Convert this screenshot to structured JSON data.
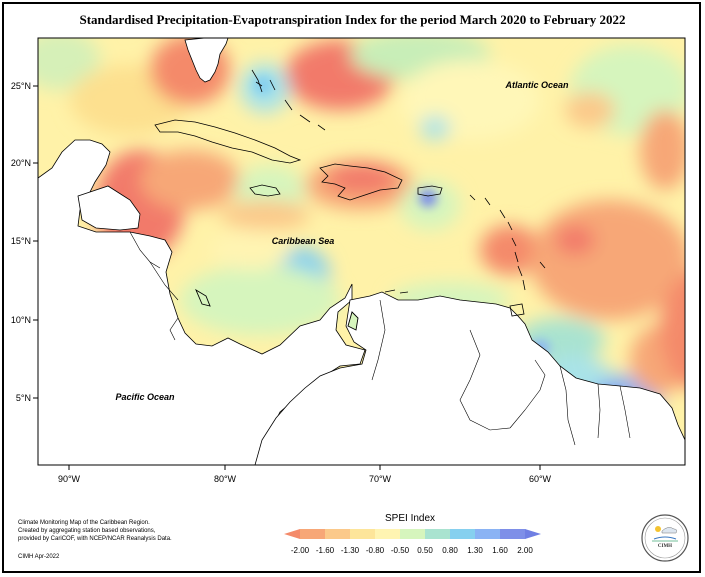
{
  "title": "Standardised Precipitation-Evapotranspiration Index for the period March 2020 to February 2022",
  "map": {
    "lon_ticks": [
      "90°W",
      "80°W",
      "70°W",
      "60°W"
    ],
    "lat_ticks": [
      "25°N",
      "20°N",
      "15°N",
      "10°N",
      "5°N"
    ],
    "labels": {
      "atlantic": "Atlantic Ocean",
      "caribbean": "Caribbean Sea",
      "pacific": "Pacific Ocean"
    }
  },
  "legend": {
    "title": "SPEI Index",
    "values": [
      "-2.00",
      "-1.60",
      "-1.30",
      "-0.80",
      "-0.50",
      "0.50",
      "0.80",
      "1.30",
      "1.60",
      "2.00"
    ],
    "colors": [
      "#f48a6a",
      "#f7a777",
      "#fbc98a",
      "#fde59a",
      "#fff4b2",
      "#d6f5bd",
      "#a9e3d0",
      "#86d0ef",
      "#8ab3f4",
      "#7e8fe8",
      "#6f7fe3"
    ]
  },
  "credits": {
    "line1": "Climate Monitoring Map of the Caribbean Region.",
    "line2": "Created by aggregating station based observations,",
    "line3": "provided by CariCOF, with NCEP/NCAR Reanalysis Data.",
    "date": "CIMH Apr-2022"
  },
  "logo": {
    "text": "CIMH"
  }
}
